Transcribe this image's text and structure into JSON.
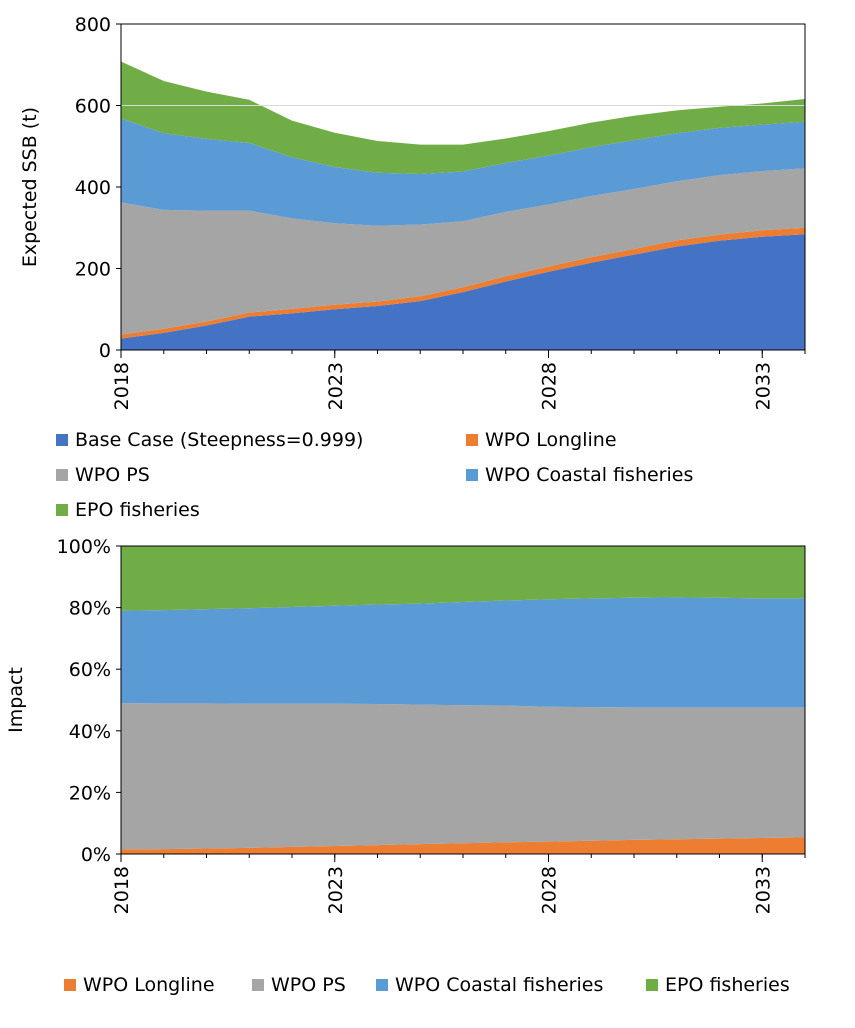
{
  "chart_data": [
    {
      "type": "area",
      "stacked": true,
      "title": "",
      "xlabel": "",
      "ylabel": "Expected SSB (t)",
      "ylim": [
        0,
        800
      ],
      "yticks": [
        "0",
        "200",
        "400",
        "600",
        "800"
      ],
      "xticks": [
        "2018",
        "2023",
        "2028",
        "2033"
      ],
      "gridline_y": 600,
      "x": [
        2018,
        2019,
        2020,
        2021,
        2022,
        2023,
        2024,
        2025,
        2026,
        2027,
        2028,
        2029,
        2030,
        2031,
        2032,
        2033,
        2034
      ],
      "series": [
        {
          "name": "Base Case (Steepness=0.999)",
          "color": "#4472C4",
          "values": [
            28,
            42,
            60,
            82,
            90,
            100,
            108,
            120,
            142,
            168,
            192,
            214,
            234,
            254,
            268,
            278,
            284
          ]
        },
        {
          "name": "WPO Longline",
          "color": "#ED7D31",
          "values": [
            10,
            10,
            10,
            10,
            11,
            11,
            11,
            12,
            12,
            13,
            13,
            14,
            14,
            15,
            15,
            16,
            16
          ]
        },
        {
          "name": "WPO PS",
          "color": "#A5A5A5",
          "values": [
            324,
            292,
            272,
            250,
            222,
            200,
            186,
            176,
            162,
            158,
            152,
            150,
            147,
            145,
            146,
            145,
            146
          ]
        },
        {
          "name": "WPO Coastal fisheries",
          "color": "#5B9BD5",
          "values": [
            206,
            188,
            176,
            166,
            150,
            138,
            130,
            124,
            122,
            120,
            120,
            120,
            120,
            118,
            116,
            114,
            114
          ]
        },
        {
          "name": "EPO fisheries",
          "color": "#70AD47",
          "values": [
            140,
            128,
            116,
            106,
            90,
            84,
            78,
            72,
            66,
            60,
            60,
            60,
            60,
            56,
            52,
            52,
            56
          ]
        }
      ]
    },
    {
      "type": "area",
      "stacked": true,
      "title": "",
      "xlabel": "",
      "ylabel": "Impact",
      "ylim": [
        0,
        100
      ],
      "yticks": [
        "0%",
        "20%",
        "40%",
        "60%",
        "80%",
        "100%"
      ],
      "xticks": [
        "2018",
        "2023",
        "2028",
        "2033"
      ],
      "x": [
        2018,
        2019,
        2020,
        2021,
        2022,
        2023,
        2024,
        2025,
        2026,
        2027,
        2028,
        2029,
        2030,
        2031,
        2032,
        2033,
        2034
      ],
      "series": [
        {
          "name": "WPO Longline",
          "color": "#ED7D31",
          "values": [
            1.5,
            1.6,
            1.8,
            2.0,
            2.3,
            2.6,
            2.9,
            3.2,
            3.5,
            3.8,
            4.0,
            4.3,
            4.6,
            4.8,
            5.0,
            5.2,
            5.4
          ]
        },
        {
          "name": "WPO PS",
          "color": "#A5A5A5",
          "values": [
            47.5,
            47.3,
            47.1,
            46.8,
            46.5,
            46.2,
            45.8,
            45.3,
            44.8,
            44.4,
            43.8,
            43.4,
            43.0,
            42.8,
            42.6,
            42.4,
            42.2
          ]
        },
        {
          "name": "WPO Coastal fisheries",
          "color": "#5B9BD5",
          "values": [
            30.0,
            30.3,
            30.6,
            31.0,
            31.4,
            31.8,
            32.3,
            32.8,
            33.5,
            34.1,
            34.9,
            35.3,
            35.6,
            35.7,
            35.6,
            35.4,
            35.4
          ]
        },
        {
          "name": "EPO fisheries",
          "color": "#70AD47",
          "values": [
            21.0,
            20.8,
            20.5,
            20.2,
            19.8,
            19.4,
            19.0,
            18.7,
            18.2,
            17.7,
            17.3,
            17.0,
            16.8,
            16.7,
            16.8,
            17.0,
            17.0
          ]
        }
      ]
    }
  ]
}
